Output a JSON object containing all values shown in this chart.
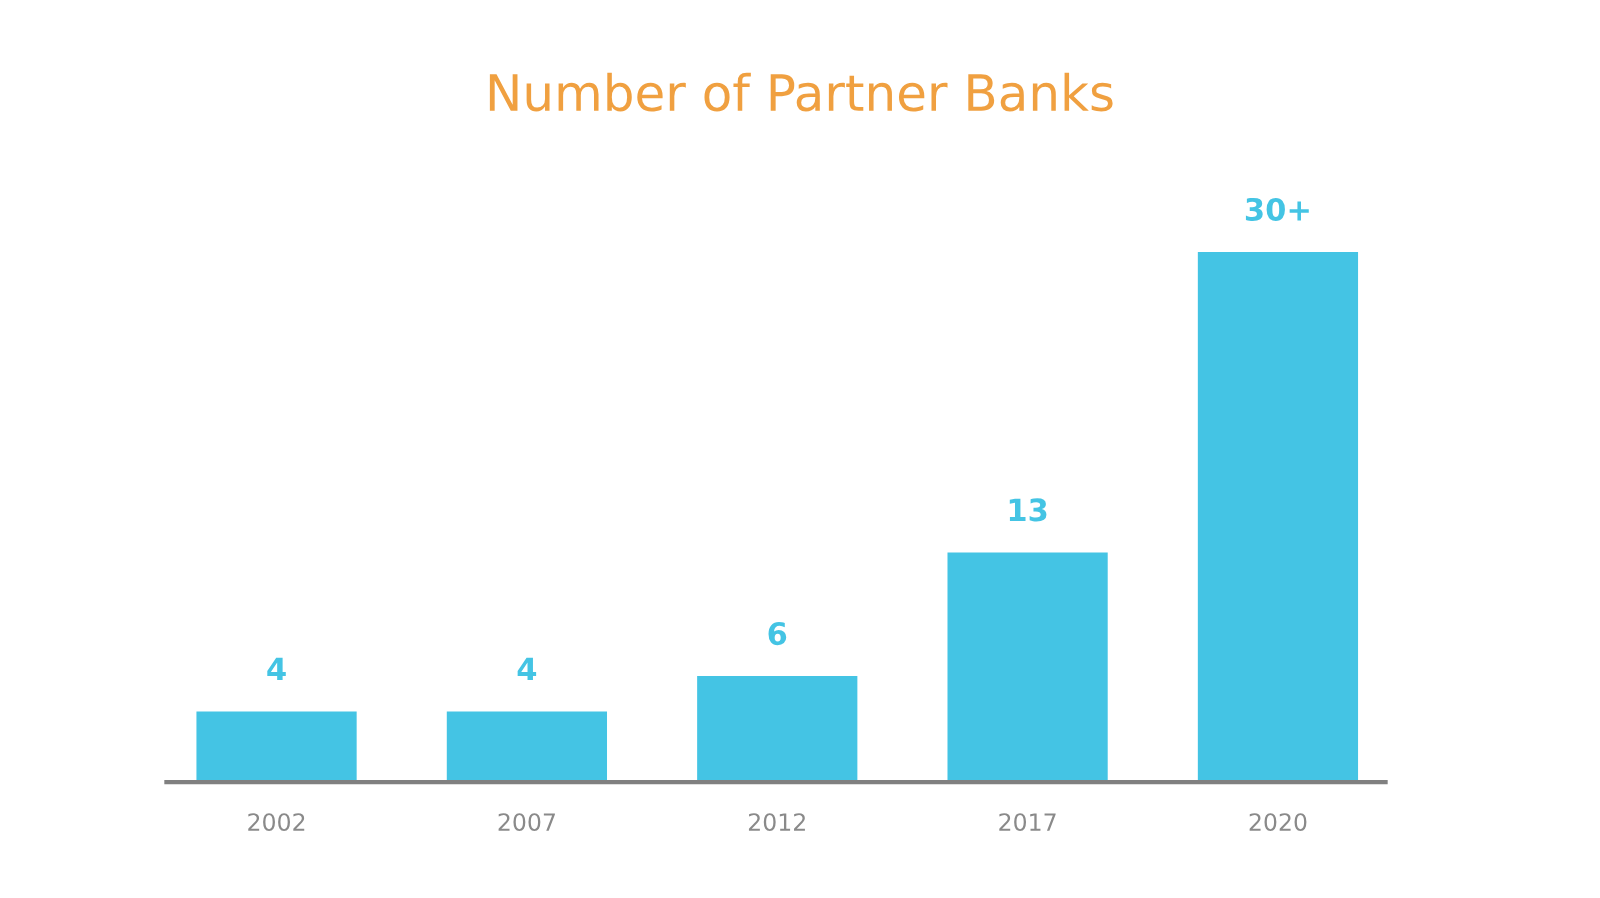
{
  "chart_data": {
    "type": "bar",
    "title": "Number of Partner Banks",
    "categories": [
      "2002",
      "2007",
      "2012",
      "2017",
      "2020"
    ],
    "values": [
      4,
      4,
      6,
      13,
      30
    ],
    "value_labels": [
      "4",
      "4",
      "6",
      "13",
      "30+"
    ],
    "color": "#44c4e4",
    "grid": false,
    "legend": false
  }
}
